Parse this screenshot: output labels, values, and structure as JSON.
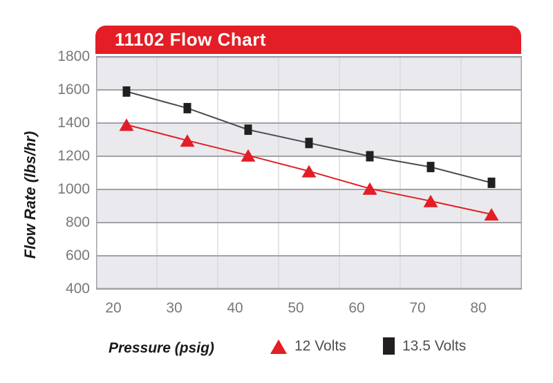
{
  "chart": {
    "title": "11102 Flow Chart",
    "x_axis_title": "Pressure (psig)",
    "y_axis_title": "Flow Rate (lbs/hr)"
  },
  "chart_data": {
    "type": "line",
    "title": "11102 Flow Chart",
    "xlabel": "Pressure (psig)",
    "ylabel": "Flow Rate (lbs/hr)",
    "categories": [
      "20",
      "30",
      "40",
      "50",
      "60",
      "70",
      "80"
    ],
    "series": [
      {
        "name": "12 Volts",
        "marker": "triangle",
        "color": "#e31e26",
        "values": [
          1390,
          1295,
          1205,
          1110,
          1005,
          930,
          850
        ]
      },
      {
        "name": "13.5 Volts",
        "marker": "square",
        "color": "#231f20",
        "line_color": "#4a4b4d",
        "values": [
          1590,
          1490,
          1360,
          1280,
          1200,
          1135,
          1040
        ]
      }
    ],
    "yticks": [
      1800,
      1600,
      1400,
      1200,
      1000,
      800,
      600,
      400
    ],
    "ylim": [
      400,
      1800
    ],
    "grid": "horizontal major gridlines, faint vertical category dividers, alternating gray/white bands",
    "legend_position": "bottom"
  },
  "colors": {
    "banner_red": "#e31e26",
    "band_gray": "#eaeaee",
    "gridline": "#a0a2a6",
    "vertical_gridline": "#d9dade",
    "tick_label": "#77787b",
    "legend_text": "#4d4e50"
  }
}
